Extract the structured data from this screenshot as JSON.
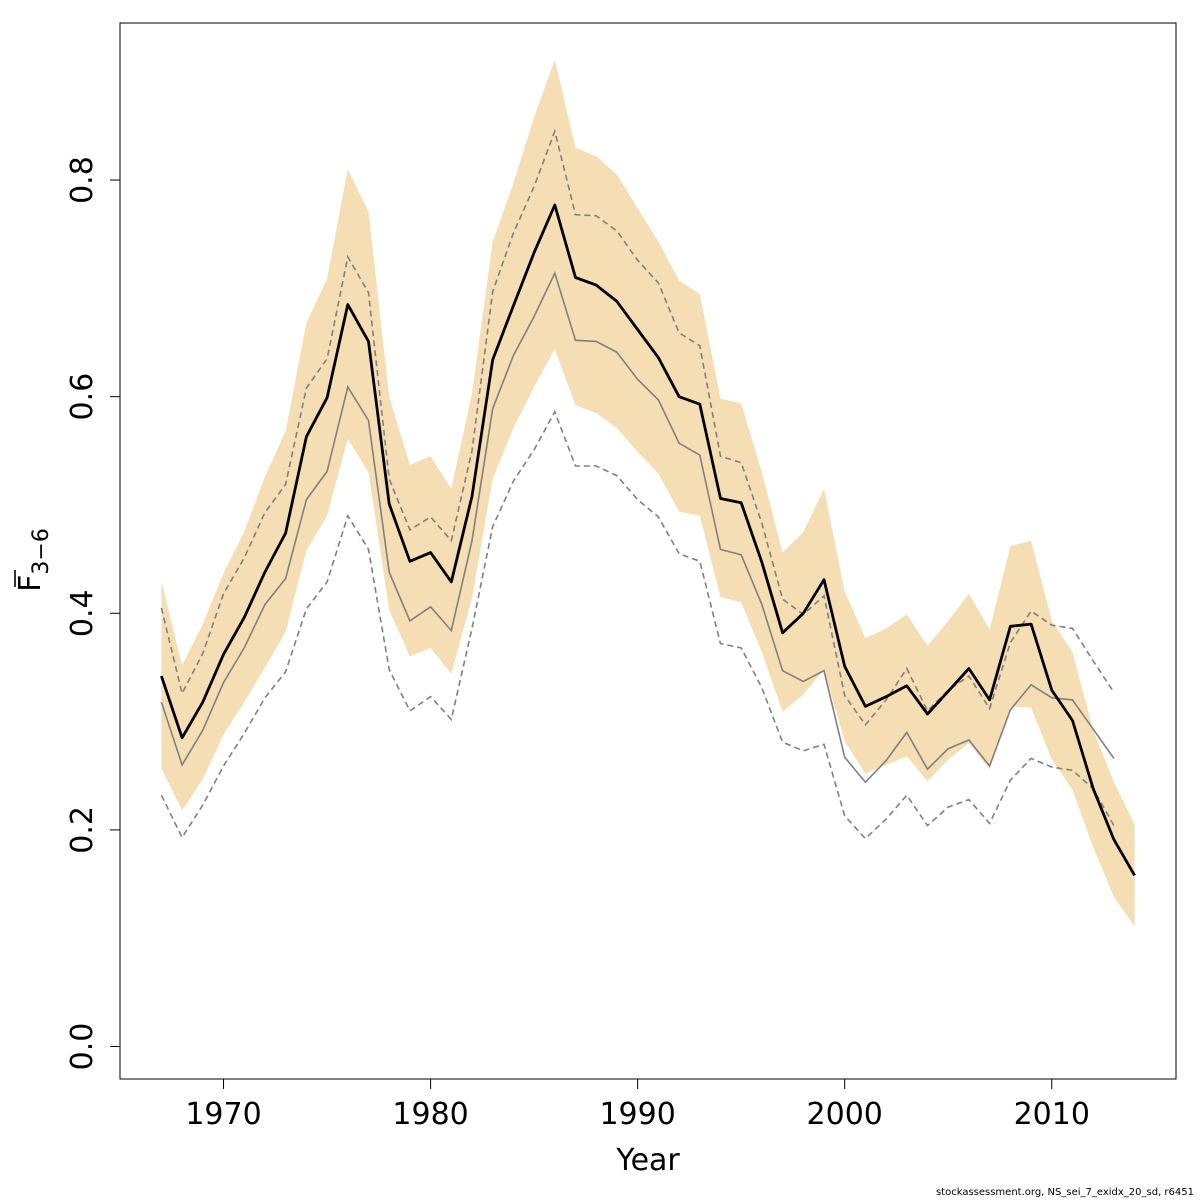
{
  "chart_data": {
    "type": "line",
    "xlabel": "Year",
    "ylabel": {
      "main": "F",
      "sub": "3−6"
    },
    "xlim": [
      1965,
      2016
    ],
    "ylim": [
      -0.03,
      0.945
    ],
    "x_ticks": [
      1970,
      1980,
      1990,
      2000,
      2010
    ],
    "x_tick_labels": [
      "1970",
      "1980",
      "1990",
      "2000",
      "2010"
    ],
    "y_ticks": [
      0.0,
      0.2,
      0.4,
      0.6,
      0.8
    ],
    "y_tick_labels": [
      "0.0",
      "0.2",
      "0.4",
      "0.6",
      "0.8"
    ],
    "grid": false,
    "colors": {
      "band": "#f5deb3",
      "main_line": "#000000",
      "retro_line": "#808080",
      "dashed_line": "#808080"
    },
    "years": [
      1967,
      1968,
      1969,
      1970,
      1971,
      1972,
      1973,
      1974,
      1975,
      1976,
      1977,
      1978,
      1979,
      1980,
      1981,
      1982,
      1983,
      1984,
      1985,
      1986,
      1987,
      1988,
      1989,
      1990,
      1991,
      1992,
      1993,
      1994,
      1995,
      1996,
      1997,
      1998,
      1999,
      2000,
      2001,
      2002,
      2003,
      2004,
      2005,
      2006,
      2007,
      2008,
      2009,
      2010,
      2011,
      2012,
      2013,
      2014
    ],
    "estimate": [
      0.342,
      0.285,
      0.318,
      0.362,
      0.396,
      0.438,
      0.474,
      0.563,
      0.599,
      0.685,
      0.651,
      0.501,
      0.448,
      0.456,
      0.429,
      0.508,
      0.634,
      0.684,
      0.733,
      0.777,
      0.71,
      0.703,
      0.688,
      0.662,
      0.636,
      0.6,
      0.593,
      0.506,
      0.502,
      0.447,
      0.382,
      0.4,
      0.431,
      0.351,
      0.314,
      0.323,
      0.333,
      0.307,
      0.328,
      0.349,
      0.32,
      0.388,
      0.39,
      0.329,
      0.301,
      0.238,
      0.191,
      0.158
    ],
    "ci_upper": [
      0.43,
      0.352,
      0.39,
      0.437,
      0.475,
      0.526,
      0.568,
      0.668,
      0.709,
      0.81,
      0.771,
      0.6,
      0.537,
      0.545,
      0.515,
      0.603,
      0.743,
      0.797,
      0.858,
      0.911,
      0.83,
      0.822,
      0.805,
      0.774,
      0.743,
      0.707,
      0.695,
      0.598,
      0.594,
      0.53,
      0.456,
      0.475,
      0.515,
      0.42,
      0.377,
      0.386,
      0.399,
      0.37,
      0.393,
      0.418,
      0.385,
      0.462,
      0.467,
      0.393,
      0.364,
      0.292,
      0.244,
      0.205
    ],
    "ci_lower": [
      0.257,
      0.218,
      0.247,
      0.288,
      0.318,
      0.35,
      0.383,
      0.458,
      0.49,
      0.561,
      0.53,
      0.403,
      0.36,
      0.368,
      0.344,
      0.414,
      0.524,
      0.571,
      0.609,
      0.644,
      0.592,
      0.585,
      0.571,
      0.549,
      0.529,
      0.494,
      0.49,
      0.415,
      0.41,
      0.364,
      0.309,
      0.325,
      0.348,
      0.282,
      0.252,
      0.26,
      0.268,
      0.245,
      0.265,
      0.28,
      0.256,
      0.314,
      0.313,
      0.265,
      0.237,
      0.184,
      0.138,
      0.111
    ],
    "retro": [
      {
        "years": [
          1967,
          1968,
          1969,
          1970,
          1971,
          1972,
          1973,
          1974,
          1975,
          1976,
          1977,
          1978,
          1979,
          1980,
          1981,
          1982,
          1983,
          1984,
          1985,
          1986,
          1987,
          1988,
          1989,
          1990,
          1991,
          1992,
          1993,
          1994,
          1995,
          1996,
          1997,
          1998,
          1999,
          2000,
          2001,
          2002,
          2003,
          2004,
          2005,
          2006,
          2007,
          2008,
          2009,
          2010,
          2011,
          2012,
          2013
        ],
        "values": [
          0.318,
          0.26,
          0.292,
          0.336,
          0.368,
          0.408,
          0.432,
          0.505,
          0.531,
          0.609,
          0.578,
          0.438,
          0.393,
          0.406,
          0.384,
          0.467,
          0.589,
          0.638,
          0.674,
          0.714,
          0.652,
          0.651,
          0.641,
          0.616,
          0.597,
          0.557,
          0.546,
          0.459,
          0.454,
          0.408,
          0.347,
          0.337,
          0.347,
          0.267,
          0.244,
          0.264,
          0.29,
          0.256,
          0.275,
          0.283,
          0.259,
          0.311,
          0.334,
          0.322,
          0.32,
          0.293,
          0.266
        ],
        "style": "solid"
      },
      {
        "years": [
          1967,
          1968,
          1969,
          1970,
          1971,
          1972,
          1973,
          1974,
          1975,
          1976,
          1977,
          1978,
          1979,
          1980,
          1981,
          1982,
          1983,
          1984,
          1985,
          1986,
          1987,
          1988,
          1989,
          1990,
          1991,
          1992,
          1993,
          1994,
          1995,
          1996,
          1997,
          1998,
          1999,
          2000,
          2001,
          2002,
          2003,
          2004,
          2005,
          2006,
          2007,
          2008,
          2009,
          2010,
          2011,
          2012,
          2013
        ],
        "values": [
          0.405,
          0.326,
          0.363,
          0.418,
          0.451,
          0.493,
          0.519,
          0.608,
          0.635,
          0.729,
          0.696,
          0.524,
          0.477,
          0.489,
          0.467,
          0.55,
          0.697,
          0.751,
          0.794,
          0.845,
          0.768,
          0.767,
          0.753,
          0.726,
          0.705,
          0.659,
          0.647,
          0.545,
          0.539,
          0.483,
          0.413,
          0.399,
          0.416,
          0.324,
          0.297,
          0.32,
          0.349,
          0.31,
          0.329,
          0.342,
          0.312,
          0.373,
          0.402,
          0.389,
          0.386,
          0.356,
          0.327
        ],
        "style": "dashed"
      },
      {
        "years": [
          1967,
          1968,
          1969,
          1970,
          1971,
          1972,
          1973,
          1974,
          1975,
          1976,
          1977,
          1978,
          1979,
          1980,
          1981,
          1982,
          1983,
          1984,
          1985,
          1986,
          1987,
          1988,
          1989,
          1990,
          1991,
          1992,
          1993,
          1994,
          1995,
          1996,
          1997,
          1998,
          1999,
          2000,
          2001,
          2002,
          2003,
          2004,
          2005,
          2006,
          2007,
          2008,
          2009,
          2010,
          2011,
          2012,
          2013
        ],
        "values": [
          0.232,
          0.193,
          0.223,
          0.259,
          0.289,
          0.322,
          0.346,
          0.404,
          0.429,
          0.49,
          0.459,
          0.348,
          0.31,
          0.323,
          0.302,
          0.386,
          0.48,
          0.522,
          0.551,
          0.586,
          0.536,
          0.536,
          0.527,
          0.505,
          0.489,
          0.455,
          0.448,
          0.372,
          0.368,
          0.331,
          0.281,
          0.273,
          0.279,
          0.213,
          0.192,
          0.21,
          0.232,
          0.204,
          0.221,
          0.228,
          0.206,
          0.246,
          0.266,
          0.258,
          0.255,
          0.238,
          0.204
        ],
        "style": "dashed"
      }
    ]
  },
  "footer_note": "stockassessment.org, NS_sei_7_exidx_20_sd, r6451"
}
